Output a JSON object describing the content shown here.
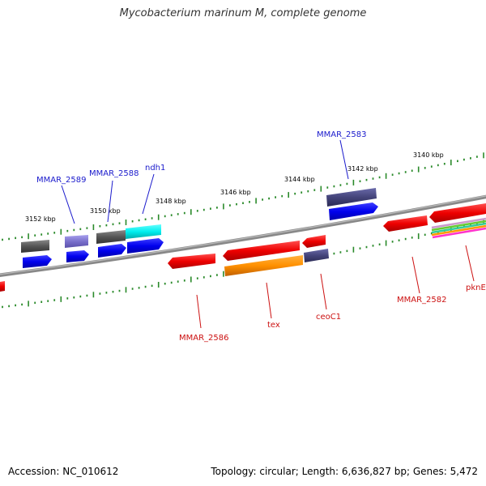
{
  "title": "Mycobacterium marinum M, complete genome",
  "footer": {
    "accession": "Accession: NC_010612",
    "summary": "Topology: circular; Length: 6,636,827 bp; Genes: 5,472"
  },
  "ruler_labels": [
    "3152 kbp",
    "3150 kbp",
    "3148 kbp",
    "3146 kbp",
    "3144 kbp",
    "3142 kbp",
    "3140 kbp"
  ],
  "gene_labels": {
    "top": [
      "MMAR_2589",
      "MMAR_2588",
      "ndh1",
      "MMAR_2583"
    ],
    "bottom": [
      "MMAR_2586",
      "tex",
      "ceoC1",
      "MMAR_2582",
      "pknE"
    ]
  },
  "colors": {
    "forward_label": "#1a1acc",
    "reverse_label": "#cc1111",
    "backbone": "#888888",
    "tick": "#2a8a2a"
  }
}
